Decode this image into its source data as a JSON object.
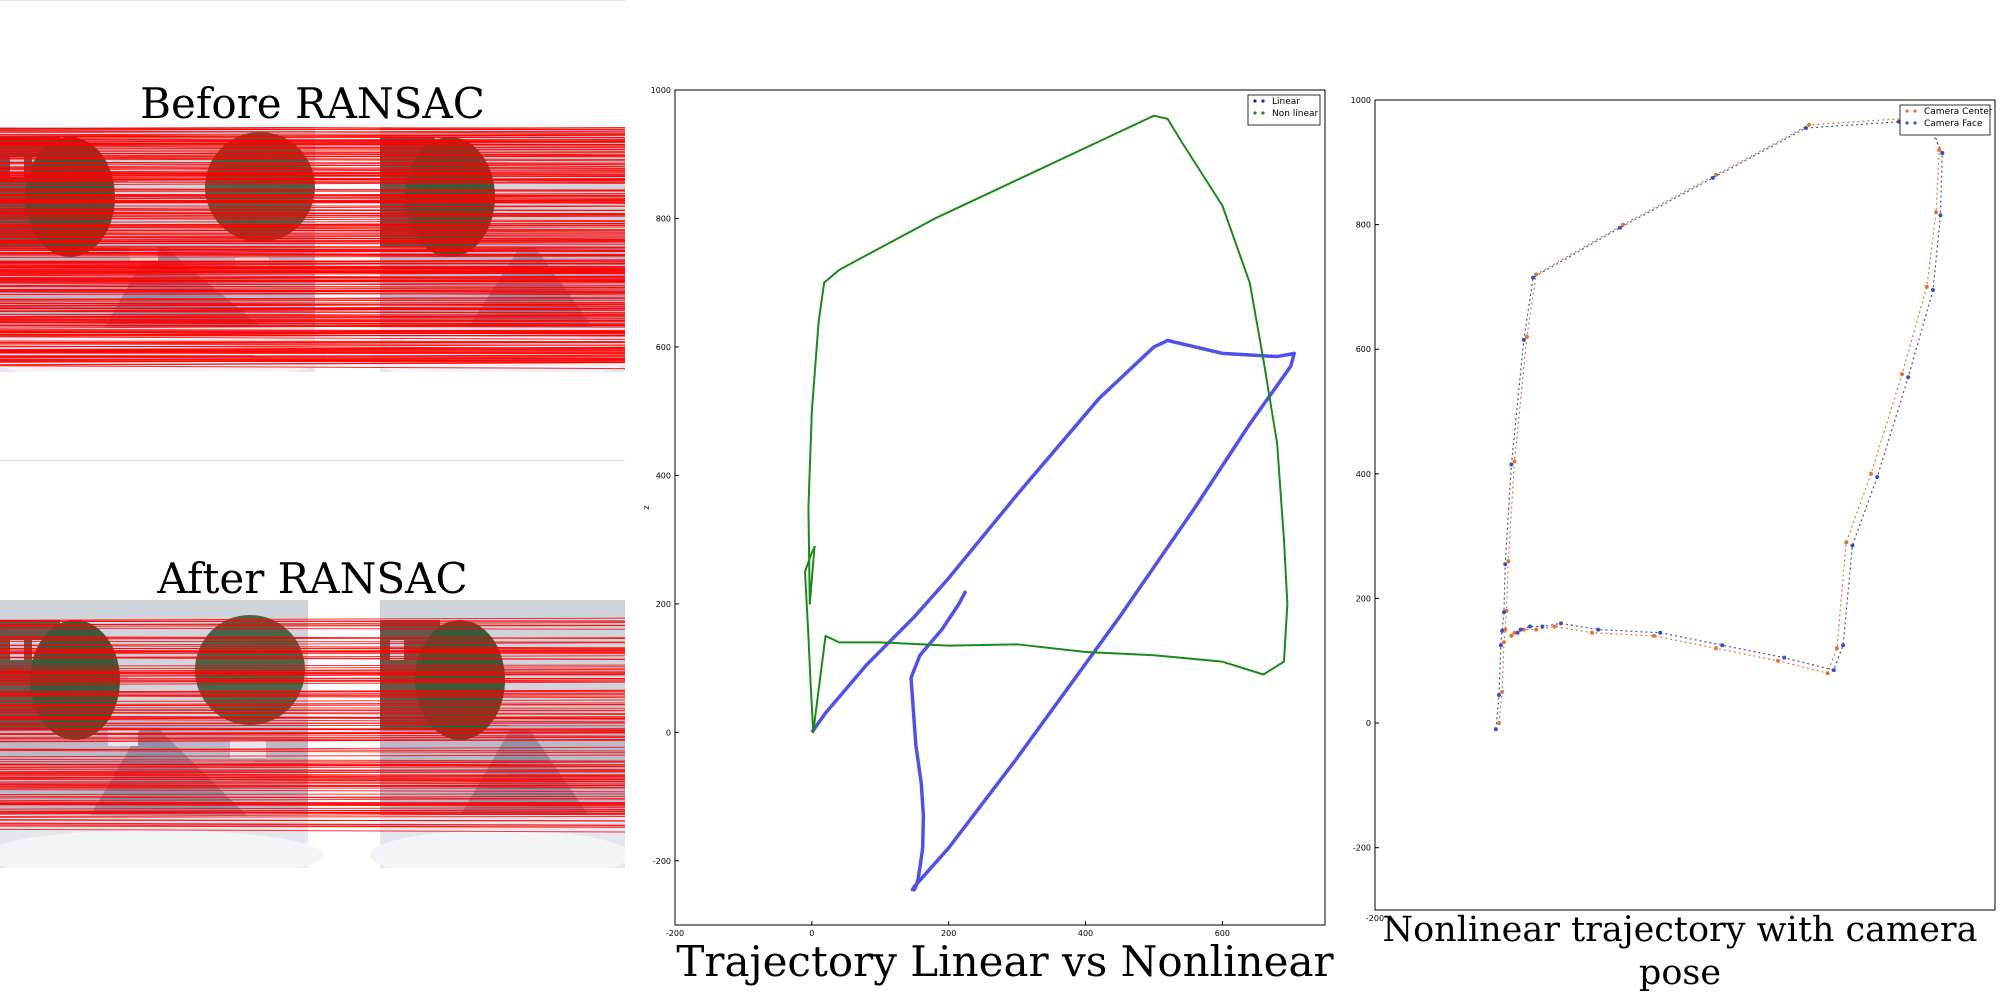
{
  "captions": {
    "before": "Before RANSAC",
    "after": "After RANSAC",
    "middle": "Trajectory Linear vs Nonlinear",
    "right_line1": "Nonlinear trajectory with camera",
    "right_line2": "pose"
  },
  "colors": {
    "match_line": "#ff0000",
    "linear": "#1515e6",
    "nonlinear": "#1a8a1a",
    "camera_center": "#e8732a",
    "camera_face": "#3550c8"
  },
  "chart_data": [
    {
      "type": "line",
      "title": "Trajectory Linear vs Nonlinear",
      "xlabel": "",
      "ylabel": "z",
      "xlim": [
        -200,
        750
      ],
      "ylim": [
        -300,
        1000
      ],
      "xticks": [
        "-200",
        "0",
        "200",
        "400",
        "600"
      ],
      "yticks": [
        "-200",
        "0",
        "200",
        "400",
        "600",
        "800",
        "1000"
      ],
      "legend_position": "top-right",
      "grid": false,
      "series": [
        {
          "name": "Linear",
          "x": [
            225,
            215,
            190,
            158,
            145,
            148,
            152,
            160,
            163,
            162,
            158,
            155,
            152,
            150,
            147,
            150,
            200,
            300,
            450,
            560,
            640,
            700,
            705,
            680,
            600,
            520,
            500,
            420,
            300,
            200,
            150,
            80,
            20,
            0
          ],
          "y": [
            220,
            200,
            160,
            120,
            85,
            40,
            -20,
            -80,
            -130,
            -180,
            -210,
            -230,
            -240,
            -245,
            -245,
            -240,
            -180,
            -40,
            180,
            350,
            480,
            570,
            590,
            585,
            590,
            610,
            600,
            520,
            370,
            240,
            180,
            105,
            30,
            0
          ]
        },
        {
          "name": "Non linear",
          "x": [
            5,
            0,
            -10,
            -5,
            -2,
            2,
            20,
            40,
            60,
            100,
            200,
            300,
            400,
            500,
            600,
            660,
            690,
            695,
            690,
            680,
            660,
            640,
            600,
            540,
            520,
            500,
            420,
            300,
            180,
            40,
            18,
            10,
            0,
            -5,
            -3,
            4
          ],
          "y": [
            290,
            280,
            250,
            150,
            80,
            0,
            150,
            140,
            140,
            140,
            135,
            137,
            125,
            120,
            110,
            90,
            110,
            200,
            300,
            450,
            580,
            700,
            820,
            920,
            955,
            960,
            920,
            860,
            800,
            720,
            700,
            640,
            500,
            350,
            200,
            290
          ]
        }
      ]
    },
    {
      "type": "scatter",
      "title": "Nonlinear trajectory with camera pose",
      "xlabel": "",
      "ylabel": "",
      "xlim": [
        -200,
        800
      ],
      "ylim": [
        -300,
        1000
      ],
      "xticks": [
        "-200"
      ],
      "yticks": [
        "-200",
        "0",
        "200",
        "400",
        "600",
        "800",
        "1000"
      ],
      "legend_position": "top-right",
      "grid": false,
      "series": [
        {
          "name": "Camera Center",
          "x": [
            0,
            5,
            8,
            10,
            12,
            15,
            25,
            45,
            60,
            200,
            350,
            500,
            650,
            700,
            710,
            705,
            690,
            650,
            600,
            560,
            545,
            530,
            450,
            350,
            250,
            150,
            90,
            60,
            40,
            25,
            20
          ],
          "y": [
            0,
            50,
            130,
            150,
            180,
            260,
            420,
            620,
            720,
            800,
            880,
            960,
            970,
            960,
            920,
            820,
            700,
            560,
            400,
            290,
            120,
            80,
            100,
            120,
            140,
            145,
            155,
            150,
            150,
            145,
            140
          ]
        },
        {
          "name": "Camera Face",
          "x": [
            -5,
            0,
            3,
            5,
            8,
            10,
            20,
            40,
            55,
            195,
            345,
            495,
            645,
            695,
            715,
            712,
            700,
            660,
            610,
            570,
            555,
            540,
            460,
            360,
            260,
            160,
            100,
            70,
            50,
            35,
            30
          ],
          "y": [
            -10,
            45,
            125,
            148,
            178,
            255,
            415,
            615,
            715,
            795,
            875,
            955,
            965,
            955,
            915,
            815,
            695,
            555,
            395,
            285,
            125,
            85,
            105,
            125,
            145,
            150,
            160,
            155,
            155,
            150,
            145
          ]
        }
      ]
    }
  ]
}
